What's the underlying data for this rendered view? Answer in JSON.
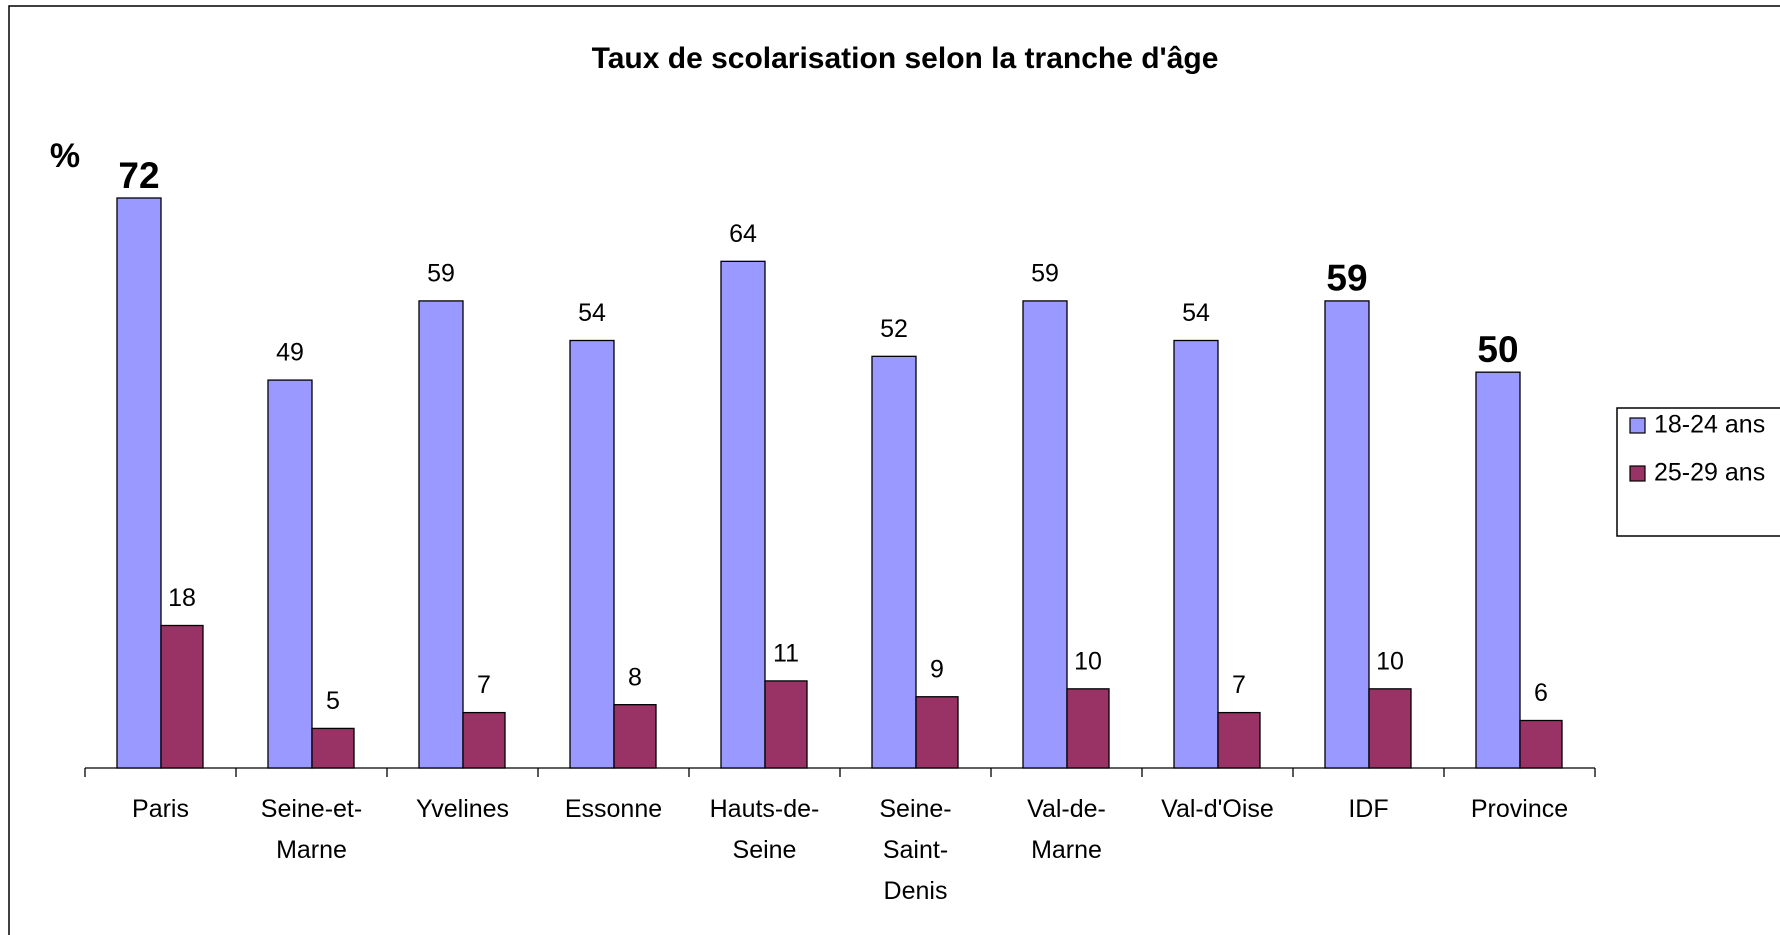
{
  "chart_data": {
    "type": "bar",
    "title": "Taux de scolarisation selon la tranche d'âge",
    "y_label": "%",
    "categories": [
      "Paris",
      "Seine-et-Marne",
      "Yvelines",
      "Essonne",
      "Hauts-de-Seine",
      "Seine-Saint-Denis",
      "Val-de-Marne",
      "Val-d'Oise",
      "IDF",
      "Province"
    ],
    "series": [
      {
        "name": "18-24 ans",
        "color": "#9999ff",
        "values": [
          72,
          49,
          59,
          54,
          64,
          52,
          59,
          54,
          59,
          50
        ]
      },
      {
        "name": "25-29 ans",
        "color": "#993366",
        "values": [
          18,
          5,
          7,
          8,
          11,
          9,
          10,
          7,
          10,
          6
        ]
      }
    ],
    "bold_labels": {
      "series": "18-24 ans",
      "categories": [
        "Paris",
        "IDF",
        "Province"
      ]
    },
    "legend": "right",
    "grid": false
  }
}
